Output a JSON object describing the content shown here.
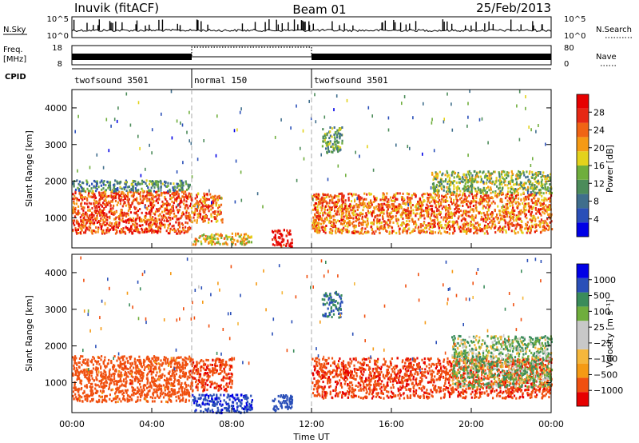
{
  "header": {
    "station": "Inuvik (fitACF)",
    "beam": "Beam 01",
    "date": "25/Feb/2013"
  },
  "top_panels": {
    "nsky_label": "N.Sky",
    "nsky_ticks": [
      "10^5",
      "10^0"
    ],
    "nsearch_label": "N.Search",
    "nsearch_ticks": [
      "10^5",
      "10^0"
    ],
    "freq_label": "Freq.",
    "freq_unit": "[MHz]",
    "freq_ticks": [
      "18",
      "8"
    ],
    "nave_label": "Nave",
    "nave_ticks": [
      "80",
      "0"
    ],
    "cpid_label": "CPID",
    "cpid_segments": [
      {
        "label": "twofsound 3501",
        "start_hour": 0,
        "end_hour": 6
      },
      {
        "label": "normal 150",
        "start_hour": 6,
        "end_hour": 12
      },
      {
        "label": "twofsound 3501",
        "start_hour": 12,
        "end_hour": 24
      }
    ]
  },
  "x_axis": {
    "label": "Time UT",
    "ticks": [
      "00:00",
      "04:00",
      "08:00",
      "12:00",
      "16:00",
      "20:00",
      "00:00"
    ]
  },
  "colors": {
    "power": [
      "#0000e6",
      "#2a4fb8",
      "#3f6e8c",
      "#4c8c5a",
      "#6fae3c",
      "#e3d21c",
      "#f59a14",
      "#f06414",
      "#e62814",
      "#e60000"
    ],
    "velocity": [
      "#e60000",
      "#f05010",
      "#f59a14",
      "#f5b73c",
      "#c8c8c8",
      "#c8c8c8",
      "#6fae3c",
      "#3a8c5a",
      "#2a4fb8",
      "#0000e6"
    ]
  },
  "chart_data": [
    {
      "type": "heatmap",
      "quantity": "Power",
      "ylabel": "Slant Range [km]",
      "colorbar_label": "Power [dB]",
      "colorbar_ticks": [
        "28",
        "24",
        "20",
        "16",
        "12",
        "8",
        "4"
      ],
      "yticks": [
        "4000",
        "3000",
        "2000",
        "1000"
      ],
      "ylim": [
        180,
        4500
      ],
      "xlim_hours": [
        0,
        24
      ],
      "clim": [
        0,
        30
      ],
      "bands": [
        {
          "t0": 0.0,
          "t1": 5.9,
          "r0": 600,
          "r1": 1750,
          "value": 24
        },
        {
          "t0": 0.0,
          "t1": 5.9,
          "r0": 1750,
          "r1": 2050,
          "value": 10
        },
        {
          "t0": 5.9,
          "t1": 7.5,
          "r0": 900,
          "r1": 1700,
          "value": 22
        },
        {
          "t0": 6.0,
          "t1": 9.0,
          "r0": 300,
          "r1": 600,
          "value": 18
        },
        {
          "t0": 10.0,
          "t1": 11.0,
          "r0": 250,
          "r1": 700,
          "value": 29
        },
        {
          "t0": 12.0,
          "t1": 24.0,
          "r0": 600,
          "r1": 1700,
          "value": 22
        },
        {
          "t0": 18.0,
          "t1": 24.0,
          "r0": 1700,
          "r1": 2300,
          "value": 14
        },
        {
          "t0": 12.5,
          "t1": 13.5,
          "r0": 2800,
          "r1": 3500,
          "value": 12
        }
      ]
    },
    {
      "type": "heatmap",
      "quantity": "Velocity",
      "ylabel": "Slant Range [km]",
      "colorbar_label": "Velocity [m s⁻¹]",
      "colorbar_ticks": [
        "1000",
        "500",
        "100",
        "25",
        "−25",
        "−100",
        "−500",
        "−1000"
      ],
      "yticks": [
        "4000",
        "3000",
        "2000",
        "1000"
      ],
      "ylim": [
        180,
        4500
      ],
      "xlim_hours": [
        0,
        24
      ],
      "clim": [
        -1000,
        1000
      ],
      "bands": [
        {
          "t0": 0.0,
          "t1": 5.9,
          "r0": 500,
          "r1": 1750,
          "value": -150
        },
        {
          "t0": 5.9,
          "t1": 8.0,
          "r0": 800,
          "r1": 1700,
          "value": -200
        },
        {
          "t0": 6.0,
          "t1": 9.0,
          "r0": 200,
          "r1": 700,
          "value": 200
        },
        {
          "t0": 10.0,
          "t1": 11.0,
          "r0": 250,
          "r1": 700,
          "value": 150
        },
        {
          "t0": 12.0,
          "t1": 24.0,
          "r0": 600,
          "r1": 1700,
          "value": -200
        },
        {
          "t0": 19.0,
          "t1": 24.0,
          "r0": 900,
          "r1": 2300,
          "value": 10
        },
        {
          "t0": 12.5,
          "t1": 13.5,
          "r0": 2800,
          "r1": 3500,
          "value": 60
        }
      ]
    }
  ]
}
